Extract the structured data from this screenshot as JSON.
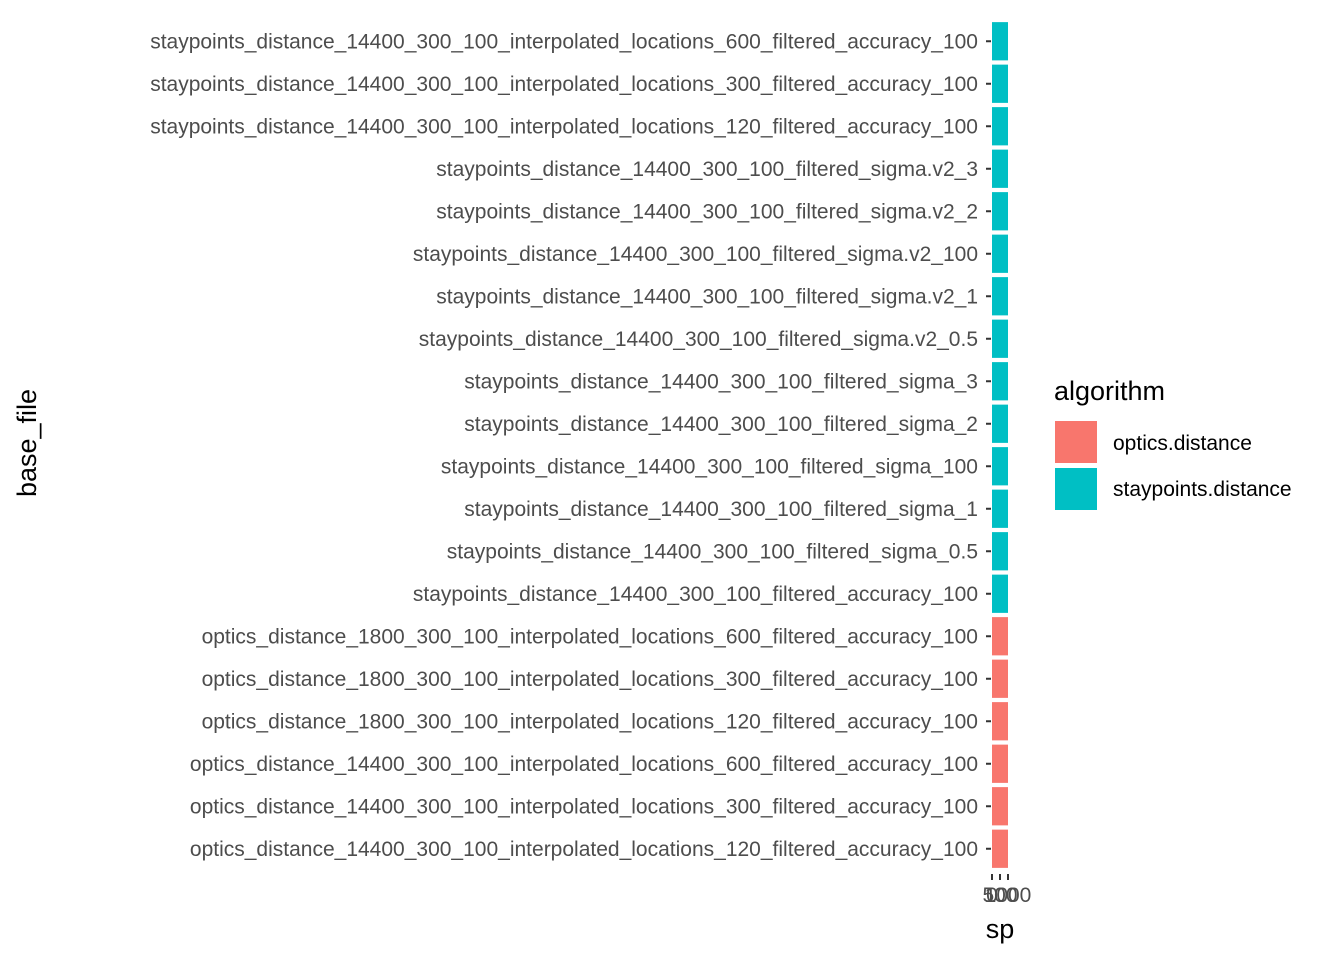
{
  "chart_data": {
    "type": "bar",
    "orientation": "horizontal",
    "xlabel": "sp",
    "ylabel": "base_file",
    "x_tick_labels": [
      "0",
      "500",
      "1000"
    ],
    "categories": [
      "optics_distance_14400_300_100_interpolated_locations_120_filtered_accuracy_100",
      "optics_distance_14400_300_100_interpolated_locations_300_filtered_accuracy_100",
      "optics_distance_14400_300_100_interpolated_locations_600_filtered_accuracy_100",
      "optics_distance_1800_300_100_interpolated_locations_120_filtered_accuracy_100",
      "optics_distance_1800_300_100_interpolated_locations_300_filtered_accuracy_100",
      "optics_distance_1800_300_100_interpolated_locations_600_filtered_accuracy_100",
      "staypoints_distance_14400_300_100_filtered_accuracy_100",
      "staypoints_distance_14400_300_100_filtered_sigma_0.5",
      "staypoints_distance_14400_300_100_filtered_sigma_1",
      "staypoints_distance_14400_300_100_filtered_sigma_100",
      "staypoints_distance_14400_300_100_filtered_sigma_2",
      "staypoints_distance_14400_300_100_filtered_sigma_3",
      "staypoints_distance_14400_300_100_filtered_sigma.v2_0.5",
      "staypoints_distance_14400_300_100_filtered_sigma.v2_1",
      "staypoints_distance_14400_300_100_filtered_sigma.v2_100",
      "staypoints_distance_14400_300_100_filtered_sigma.v2_2",
      "staypoints_distance_14400_300_100_filtered_sigma.v2_3",
      "staypoints_distance_14400_300_100_interpolated_locations_120_filtered_accuracy_100",
      "staypoints_distance_14400_300_100_interpolated_locations_300_filtered_accuracy_100",
      "staypoints_distance_14400_300_100_interpolated_locations_600_filtered_accuracy_100"
    ],
    "groups": [
      "optics.distance",
      "optics.distance",
      "optics.distance",
      "optics.distance",
      "optics.distance",
      "optics.distance",
      "staypoints.distance",
      "staypoints.distance",
      "staypoints.distance",
      "staypoints.distance",
      "staypoints.distance",
      "staypoints.distance",
      "staypoints.distance",
      "staypoints.distance",
      "staypoints.distance",
      "staypoints.distance",
      "staypoints.distance",
      "staypoints.distance",
      "staypoints.distance",
      "staypoints.distance"
    ],
    "values": [
      1000,
      1000,
      1000,
      1000,
      1000,
      1000,
      1000,
      1000,
      1000,
      1000,
      1000,
      1000,
      1000,
      1000,
      1000,
      1000,
      1000,
      1000,
      1000,
      1000
    ],
    "xlim": [
      0,
      1000
    ],
    "grid": false,
    "legend": {
      "title": "algorithm",
      "position": "right",
      "entries": [
        {
          "name": "optics.distance",
          "color": "#F8766D"
        },
        {
          "name": "staypoints.distance",
          "color": "#00BFC4"
        }
      ]
    }
  }
}
